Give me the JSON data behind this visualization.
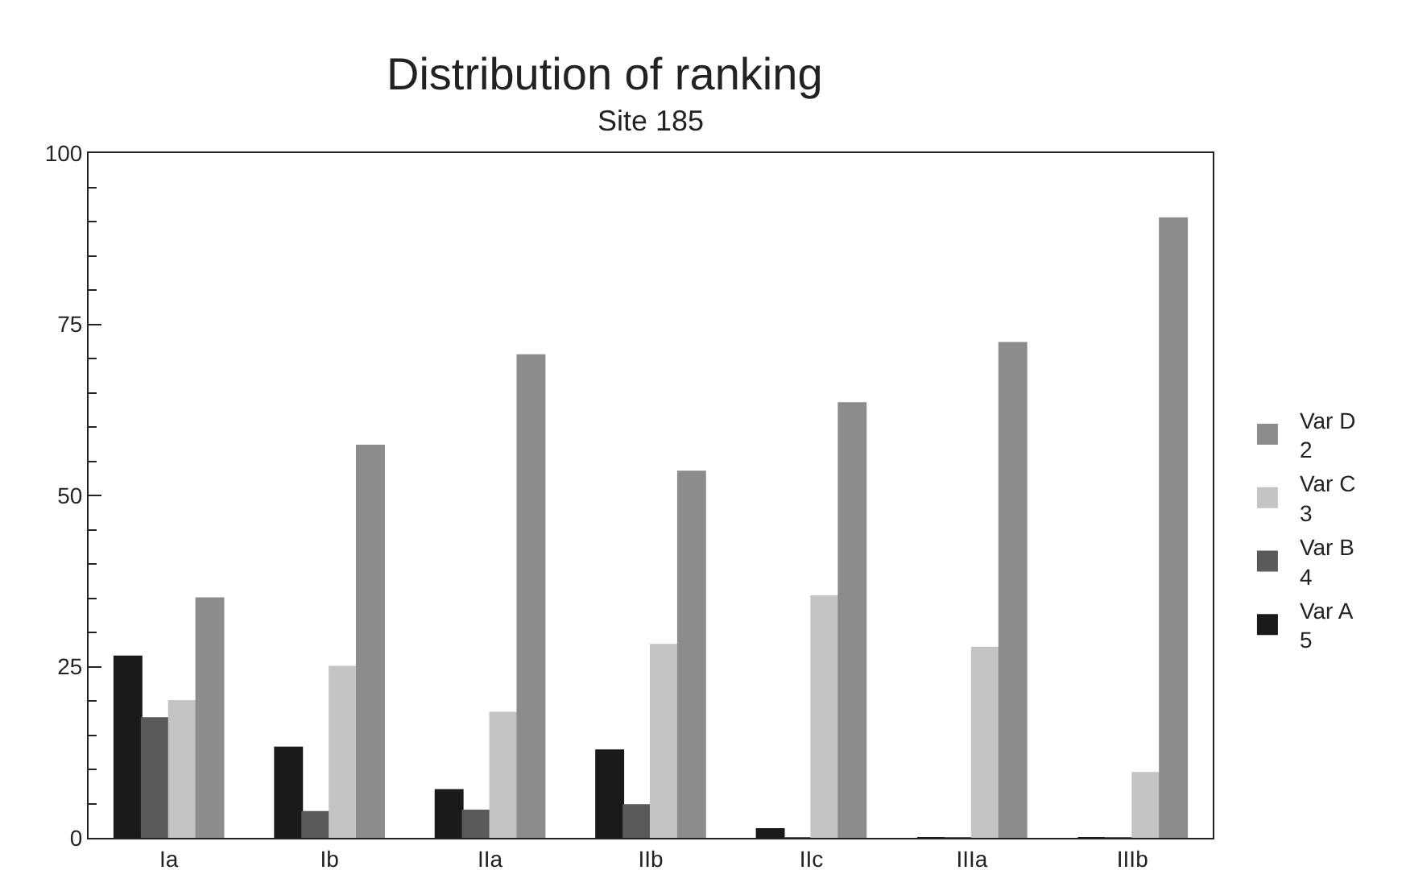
{
  "chart_data": {
    "type": "bar",
    "title": "Distribution of ranking",
    "subtitle": "Site 185",
    "categories": [
      "Ia",
      "Ib",
      "IIa",
      "IIb",
      "IIc",
      "IIIa",
      "IIIb"
    ],
    "series": [
      {
        "name": "Var A\n5",
        "color": "#1a1a1a",
        "values": [
          26.5,
          13.2,
          7,
          12.8,
          1.3,
          0,
          0
        ]
      },
      {
        "name": "Var B\n4",
        "color": "#5a5a5a",
        "values": [
          17.5,
          3.8,
          4,
          4.8,
          0,
          0,
          0
        ]
      },
      {
        "name": "Var C\n3",
        "color": "#c4c4c4",
        "values": [
          20,
          25,
          18.3,
          28.2,
          35.3,
          27.8,
          9.5
        ]
      },
      {
        "name": "Var D\n2",
        "color": "#8c8c8c",
        "values": [
          35,
          57.3,
          70.5,
          53.5,
          63.5,
          72.3,
          90.5
        ]
      }
    ],
    "ylim": [
      0,
      100
    ],
    "yticks": [
      0,
      {
        "value": 5,
        "label": null
      },
      {
        "value": 10,
        "label": null
      },
      {
        "value": 15,
        "label": null
      },
      {
        "value": 20,
        "label": null
      },
      25,
      {
        "value": 30,
        "label": null
      },
      {
        "value": 35,
        "label": null
      },
      {
        "value": 40,
        "label": null
      },
      {
        "value": 45,
        "label": null
      },
      50,
      {
        "value": 55,
        "label": null
      },
      {
        "value": 60,
        "label": null
      },
      {
        "value": 65,
        "label": null
      },
      {
        "value": 70,
        "label": null
      },
      75,
      {
        "value": 80,
        "label": null
      },
      {
        "value": 85,
        "label": null
      },
      {
        "value": 90,
        "label": null
      },
      {
        "value": 95,
        "label": null
      },
      100
    ],
    "legend": "right"
  }
}
